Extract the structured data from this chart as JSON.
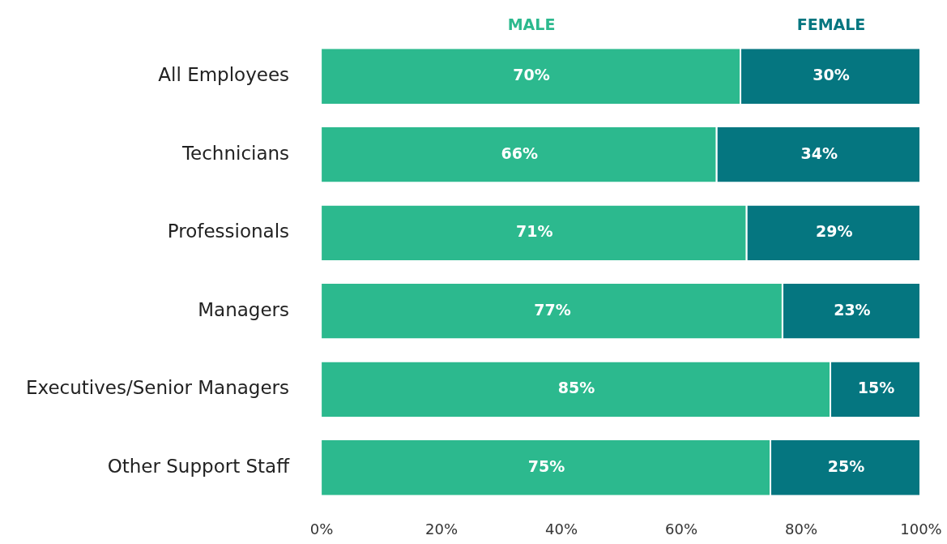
{
  "chart_data": {
    "type": "bar",
    "orientation": "horizontal",
    "stacked": true,
    "categories": [
      "All Employees",
      "Technicians",
      "Professionals",
      "Managers",
      "Executives/Senior Managers",
      "Other Support Staff"
    ],
    "series": [
      {
        "name": "MALE",
        "color": "#2cb98e",
        "values": [
          70,
          66,
          71,
          77,
          85,
          75
        ],
        "value_labels": [
          "70%",
          "66%",
          "71%",
          "77%",
          "85%",
          "75%"
        ]
      },
      {
        "name": "FEMALE",
        "color": "#057680",
        "values": [
          30,
          34,
          29,
          23,
          15,
          25
        ],
        "value_labels": [
          "30%",
          "34%",
          "29%",
          "23%",
          "15%",
          "25%"
        ]
      }
    ],
    "xlim": [
      0,
      100
    ],
    "xticks": [
      {
        "value": 0,
        "label": "0%"
      },
      {
        "value": 20,
        "label": "20%"
      },
      {
        "value": 40,
        "label": "40%"
      },
      {
        "value": 60,
        "label": "60%"
      },
      {
        "value": 80,
        "label": "80%"
      },
      {
        "value": 100,
        "label": "100%"
      }
    ],
    "grid": false,
    "legend": "top"
  }
}
